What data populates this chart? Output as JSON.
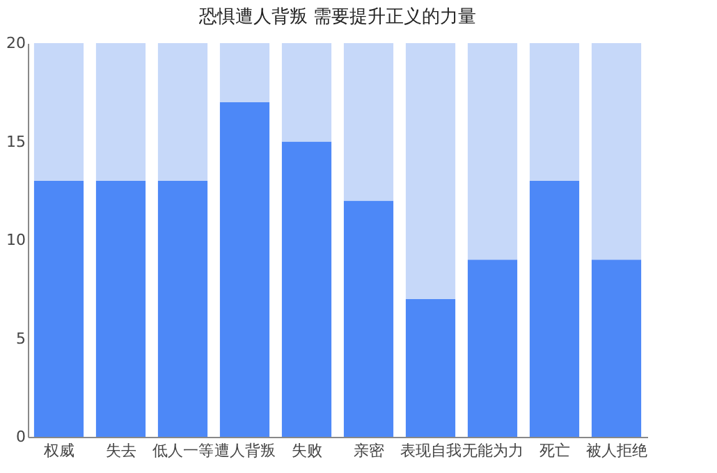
{
  "chart_data": {
    "type": "bar",
    "title": "恐惧遭人背叛 需要提升正义的力量",
    "stacked": true,
    "categories": [
      "权威",
      "失去",
      "低人一等",
      "遭人背叛",
      "失败",
      "亲密",
      "表现自我",
      "无能为力",
      "死亡",
      "被人拒绝"
    ],
    "series": [
      {
        "color": "#4d88f7",
        "values": [
          13,
          13,
          13,
          17,
          15,
          12,
          7,
          9,
          13,
          9
        ]
      },
      {
        "color": "#c6d8f9",
        "values": [
          7,
          7,
          7,
          3,
          5,
          8,
          13,
          11,
          7,
          11
        ]
      }
    ],
    "ylim": [
      0,
      20
    ],
    "yticks": [
      0,
      5,
      10,
      15,
      20
    ],
    "grid": false,
    "legend": false
  }
}
